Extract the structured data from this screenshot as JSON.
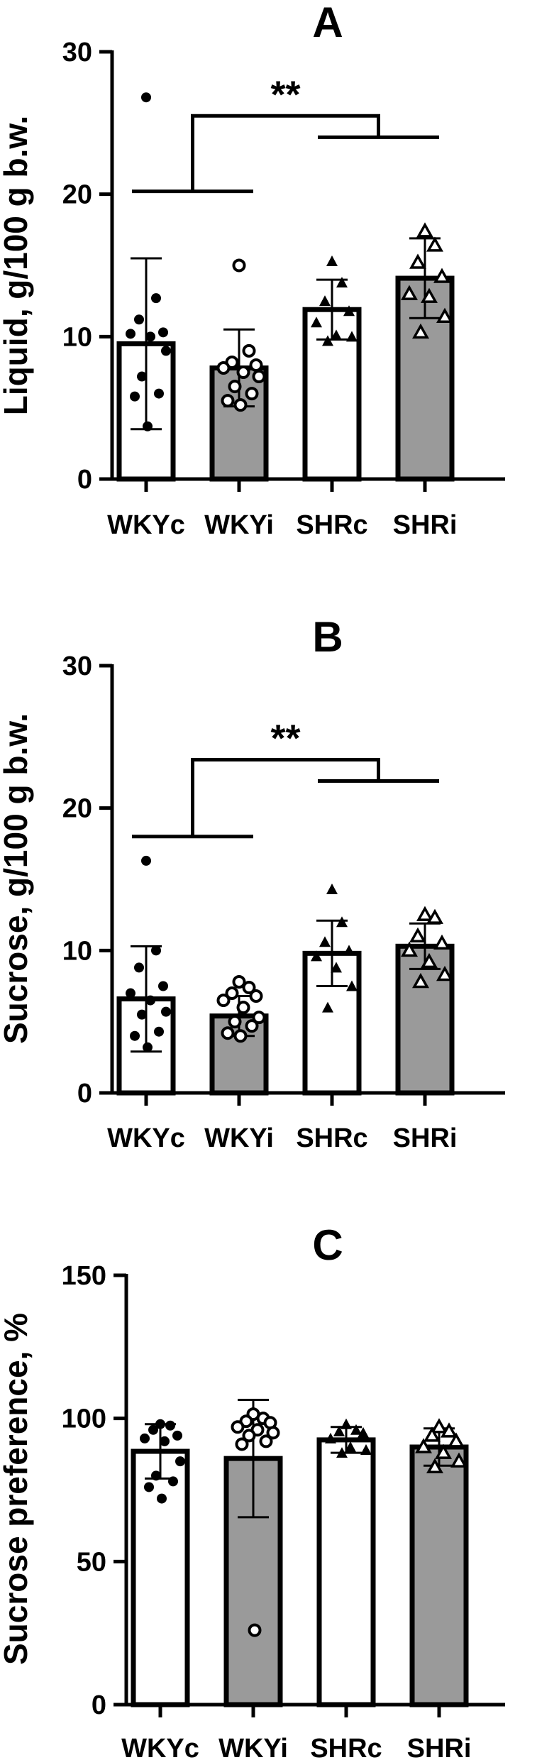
{
  "chart_data": [
    {
      "type": "bar",
      "panel": "A",
      "ylabel": "Liquid, g/100 g b.w.",
      "ylim": [
        0,
        30
      ],
      "yticks": [
        "0",
        "10",
        "20",
        "30"
      ],
      "categories": [
        "WKYc",
        "WKYi",
        "SHRc",
        "SHRi"
      ],
      "series": [
        {
          "values": [
            9.5,
            7.8,
            11.9,
            14.1
          ],
          "error": [
            6.0,
            2.7,
            2.1,
            2.8
          ]
        }
      ],
      "fills": [
        "#ffffff",
        "#9a9a9a",
        "#ffffff",
        "#9a9a9a"
      ],
      "markers": [
        "dot",
        "circle",
        "triangle",
        "triangle-open"
      ],
      "points": [
        [
          26.8,
          12.7,
          11.2,
          10.3,
          10.2,
          10.0,
          9.0,
          7.2,
          6.0,
          5.8,
          3.7
        ],
        [
          15.0,
          9.0,
          8.2,
          8.0,
          7.8,
          7.5,
          7.2,
          6.5,
          6.0,
          5.5,
          5.2
        ],
        [
          15.3,
          13.8,
          12.5,
          11.8,
          11.0,
          10.1,
          10.0,
          9.7
        ],
        [
          17.4,
          16.4,
          15.2,
          14.2,
          13.0,
          12.8,
          11.4,
          10.3
        ]
      ],
      "significance": {
        "label": "**",
        "group_left": [
          "WKYc",
          "WKYi"
        ],
        "group_right": [
          "SHRc",
          "SHRi"
        ],
        "y_left": 20.2,
        "y_right": 24.0,
        "y_top": 25.5
      }
    },
    {
      "type": "bar",
      "panel": "B",
      "ylabel": "Sucrose, g/100 g b.w.",
      "ylim": [
        0,
        30
      ],
      "yticks": [
        "0",
        "10",
        "20",
        "30"
      ],
      "categories": [
        "WKYc",
        "WKYi",
        "SHRc",
        "SHRi"
      ],
      "series": [
        {
          "values": [
            6.6,
            5.4,
            9.8,
            10.3
          ],
          "error": [
            3.7,
            1.4,
            2.3,
            1.6
          ]
        }
      ],
      "fills": [
        "#ffffff",
        "#9a9a9a",
        "#ffffff",
        "#9a9a9a"
      ],
      "markers": [
        "dot",
        "circle",
        "triangle",
        "triangle-open"
      ],
      "points": [
        [
          16.3,
          10.0,
          8.8,
          7.5,
          7.0,
          6.5,
          5.7,
          5.5,
          4.3,
          4.0,
          3.2
        ],
        [
          7.8,
          7.4,
          7.0,
          6.8,
          6.5,
          6.0,
          5.3,
          5.0,
          4.7,
          4.2,
          4.0
        ],
        [
          14.3,
          12.0,
          10.6,
          10.0,
          9.6,
          8.8,
          7.5,
          6.0
        ],
        [
          12.5,
          12.3,
          11.0,
          10.5,
          10.0,
          9.2,
          8.3,
          7.8
        ]
      ],
      "significance": {
        "label": "**",
        "group_left": [
          "WKYc",
          "WKYi"
        ],
        "group_right": [
          "SHRc",
          "SHRi"
        ],
        "y_left": 18.0,
        "y_right": 21.9,
        "y_top": 23.4
      }
    },
    {
      "type": "bar",
      "panel": "C",
      "ylabel": "Sucrose preference, %",
      "ylim": [
        0,
        150
      ],
      "yticks": [
        "0",
        "50",
        "100",
        "150"
      ],
      "categories": [
        "WKYc",
        "WKYi",
        "SHRc",
        "SHRi"
      ],
      "series": [
        {
          "values": [
            88.5,
            86.0,
            92.5,
            90.0
          ],
          "error": [
            9.5,
            20.5,
            4.5,
            6.5
          ]
        }
      ],
      "fills": [
        "#ffffff",
        "#9a9a9a",
        "#ffffff",
        "#9a9a9a"
      ],
      "markers": [
        "dot",
        "circle",
        "triangle",
        "triangle-open"
      ],
      "points": [
        [
          98.0,
          97.5,
          96.0,
          94.0,
          93.0,
          92.0,
          85.0,
          80.0,
          78.0,
          76.0,
          72.0
        ],
        [
          101.5,
          100.0,
          99.0,
          98.5,
          97.0,
          96.0,
          95.0,
          94.0,
          92.0,
          91.0,
          26.0
        ],
        [
          98.0,
          96.0,
          95.5,
          95.0,
          93.0,
          90.0,
          89.0,
          88.0
        ],
        [
          97.0,
          95.5,
          94.0,
          92.0,
          90.0,
          88.0,
          85.0,
          83.0
        ]
      ]
    }
  ]
}
